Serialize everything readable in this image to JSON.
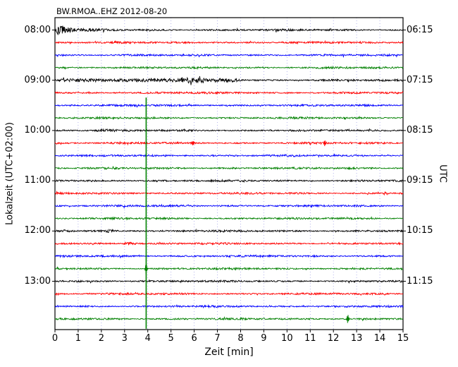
{
  "chart_data": {
    "type": "line",
    "variant": "seismogram-dayplot",
    "title": "BW.RMOA..EHZ 2012-08-20",
    "xlabel": "Zeit  [min]",
    "ylabel_left": "Lokalzeit (UTC+02:00)",
    "ylabel_right": "UTC",
    "xlim": [
      0,
      15
    ],
    "x_ticks": [
      0,
      1,
      2,
      3,
      4,
      5,
      6,
      7,
      8,
      9,
      10,
      11,
      12,
      13,
      14,
      15
    ],
    "minutes_per_line": 15,
    "grid": "vertical-dotted",
    "colors": {
      "black": "#000000",
      "red": "#ff0000",
      "blue": "#0000ff",
      "green": "#008000",
      "grid": "#3333cc",
      "axis": "#000000"
    },
    "rows": [
      {
        "color": "black",
        "local": "08:00",
        "utc": "06:15"
      },
      {
        "color": "red"
      },
      {
        "color": "blue"
      },
      {
        "color": "green"
      },
      {
        "color": "black",
        "local": "09:00",
        "utc": "07:15"
      },
      {
        "color": "red"
      },
      {
        "color": "blue"
      },
      {
        "color": "green"
      },
      {
        "color": "black",
        "local": "10:00",
        "utc": "08:15"
      },
      {
        "color": "red"
      },
      {
        "color": "blue"
      },
      {
        "color": "green"
      },
      {
        "color": "black",
        "local": "11:00",
        "utc": "09:15"
      },
      {
        "color": "red"
      },
      {
        "color": "blue"
      },
      {
        "color": "green"
      },
      {
        "color": "black",
        "local": "12:00",
        "utc": "10:15"
      },
      {
        "color": "red"
      },
      {
        "color": "blue"
      },
      {
        "color": "green"
      },
      {
        "color": "black",
        "local": "13:00",
        "utc": "11:15"
      },
      {
        "color": "red"
      },
      {
        "color": "blue"
      },
      {
        "color": "green"
      }
    ],
    "events": [
      {
        "row": 0,
        "type": "burst",
        "start": 0.0,
        "peak": 0.15,
        "end": 1.35,
        "amp": 7.0
      },
      {
        "row": 0,
        "type": "burst",
        "start": 1.35,
        "peak": 1.45,
        "end": 2.8,
        "amp": 1.2
      },
      {
        "row": 4,
        "type": "plateau",
        "start": 0.0,
        "end": 8.2,
        "amp": 1.3
      },
      {
        "row": 4,
        "type": "burst",
        "start": 5.4,
        "peak": 5.7,
        "end": 7.8,
        "amp": 1.6
      },
      {
        "row": 8,
        "type": "burst",
        "start": 1.6,
        "peak": 2.0,
        "end": 3.3,
        "amp": 1.4
      },
      {
        "row": 9,
        "type": "spike",
        "t": 5.95,
        "amp": 3.0
      },
      {
        "row": 9,
        "type": "spike",
        "t": 11.62,
        "amp": 3.5
      },
      {
        "row": 16,
        "type": "burst",
        "start": 2.1,
        "peak": 2.3,
        "end": 2.8,
        "amp": 2.0
      },
      {
        "row": 17,
        "type": "burst",
        "start": 2.9,
        "peak": 3.15,
        "end": 3.8,
        "amp": 2.4
      },
      {
        "row": 19,
        "type": "spike",
        "t": 3.93,
        "amp": 8.0
      },
      {
        "row": 23,
        "type": "spike",
        "t": 12.62,
        "amp": 6.0
      }
    ],
    "big_event": {
      "t": 3.93,
      "color": "green",
      "row_top": 6,
      "row_bottom": 23
    }
  }
}
